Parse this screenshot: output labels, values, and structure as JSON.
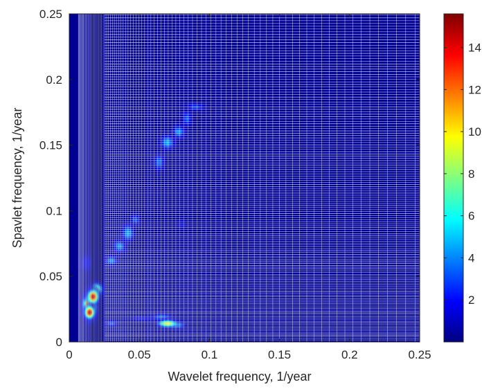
{
  "chart_data": {
    "type": "heatmap",
    "title": "",
    "xlabel": "Wavelet frequency, 1/year",
    "ylabel": "Spavlet frequency, 1/year",
    "xlim": [
      0,
      0.25
    ],
    "ylim": [
      0,
      0.25
    ],
    "xticks": [
      0,
      0.05,
      0.1,
      0.15,
      0.2,
      0.25
    ],
    "xtick_labels": [
      "0",
      "0.05",
      "0.1",
      "0.15",
      "0.2",
      "0.25"
    ],
    "yticks": [
      0,
      0.05,
      0.1,
      0.15,
      0.2,
      0.25
    ],
    "ytick_labels": [
      "0",
      "0.05",
      "0.1",
      "0.15",
      "0.2",
      "0.25"
    ],
    "colorbar": {
      "range": [
        0,
        15.6
      ],
      "ticks": [
        2,
        4,
        6,
        8,
        10,
        12,
        14
      ],
      "tick_labels": [
        "2",
        "4",
        "6",
        "8",
        "10",
        "12",
        "14"
      ],
      "colormap": "jet"
    },
    "background_value": 0.3,
    "grid": "irregular sampling lines",
    "blobs": [
      {
        "x": 0.0145,
        "y": 0.0225,
        "value": 15.5,
        "sx": 0.003,
        "sy": 0.004
      },
      {
        "x": 0.017,
        "y": 0.0345,
        "value": 14.5,
        "sx": 0.0035,
        "sy": 0.0045
      },
      {
        "x": 0.013,
        "y": 0.029,
        "value": 10.5,
        "sx": 0.003,
        "sy": 0.005
      },
      {
        "x": 0.0195,
        "y": 0.04,
        "value": 7.5,
        "sx": 0.004,
        "sy": 0.0045
      },
      {
        "x": 0.015,
        "y": 0.027,
        "value": 9.0,
        "sx": 0.0045,
        "sy": 0.009
      },
      {
        "x": 0.03,
        "y": 0.062,
        "value": 4.0,
        "sx": 0.004,
        "sy": 0.0035
      },
      {
        "x": 0.036,
        "y": 0.073,
        "value": 4.2,
        "sx": 0.004,
        "sy": 0.0045
      },
      {
        "x": 0.042,
        "y": 0.083,
        "value": 4.5,
        "sx": 0.004,
        "sy": 0.006
      },
      {
        "x": 0.047,
        "y": 0.093,
        "value": 3.3,
        "sx": 0.0035,
        "sy": 0.0045
      },
      {
        "x": 0.064,
        "y": 0.137,
        "value": 3.6,
        "sx": 0.0035,
        "sy": 0.006
      },
      {
        "x": 0.07,
        "y": 0.152,
        "value": 4.6,
        "sx": 0.0045,
        "sy": 0.005
      },
      {
        "x": 0.078,
        "y": 0.16,
        "value": 4.2,
        "sx": 0.004,
        "sy": 0.0045
      },
      {
        "x": 0.084,
        "y": 0.17,
        "value": 3.4,
        "sx": 0.003,
        "sy": 0.005
      },
      {
        "x": 0.09,
        "y": 0.179,
        "value": 3.0,
        "sx": 0.006,
        "sy": 0.0025
      },
      {
        "x": 0.03,
        "y": 0.014,
        "value": 3.2,
        "sx": 0.004,
        "sy": 0.0022
      },
      {
        "x": 0.052,
        "y": 0.018,
        "value": 2.2,
        "sx": 0.008,
        "sy": 0.0022
      },
      {
        "x": 0.07,
        "y": 0.014,
        "value": 9.5,
        "sx": 0.006,
        "sy": 0.0025
      },
      {
        "x": 0.076,
        "y": 0.013,
        "value": 7.0,
        "sx": 0.005,
        "sy": 0.0022
      },
      {
        "x": 0.066,
        "y": 0.019,
        "value": 3.5,
        "sx": 0.007,
        "sy": 0.0025
      },
      {
        "x": 0.012,
        "y": 0.06,
        "value": 1.6,
        "sx": 0.004,
        "sy": 0.006
      },
      {
        "x": 0.08,
        "y": 0.09,
        "value": 1.2,
        "sx": 0.003,
        "sy": 0.004
      }
    ]
  }
}
